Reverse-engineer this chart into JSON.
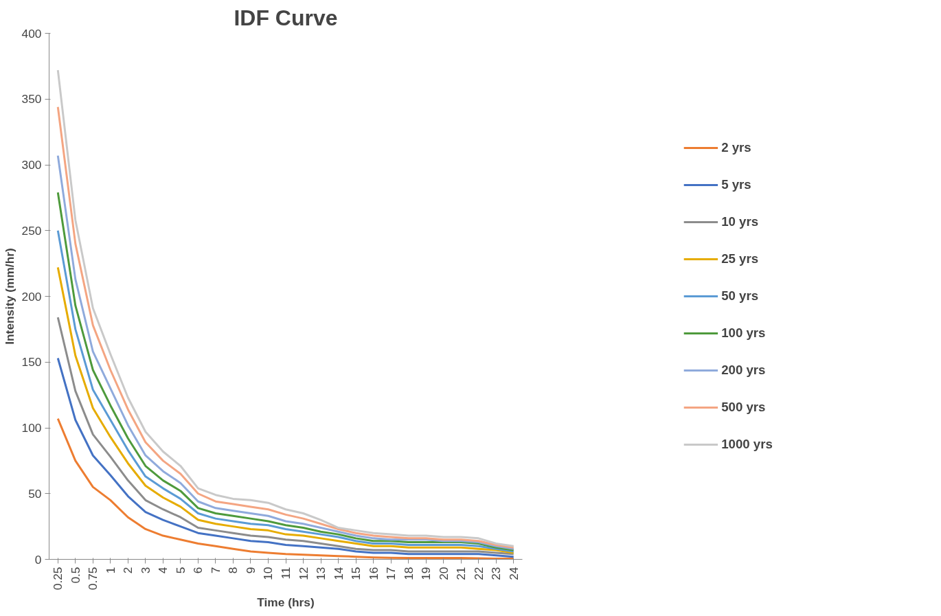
{
  "chart_data": {
    "type": "line",
    "title": "IDF Curve",
    "xlabel": "Time (hrs)",
    "ylabel": "Intensity (mm/hr)",
    "categories": [
      "0.25",
      "0.5",
      "0.75",
      "1",
      "2",
      "3",
      "4",
      "5",
      "6",
      "7",
      "8",
      "9",
      "10",
      "11",
      "12",
      "13",
      "14",
      "15",
      "16",
      "17",
      "18",
      "19",
      "20",
      "21",
      "22",
      "23",
      "24"
    ],
    "ylim": [
      0,
      400
    ],
    "yticks": [
      0,
      50,
      100,
      150,
      200,
      250,
      300,
      350,
      400
    ],
    "grid": false,
    "legend": "right",
    "marker": "none",
    "line_style": "solid",
    "series": [
      {
        "name": "2 yrs",
        "color": "#ed7d31",
        "values": [
          107,
          75,
          55,
          45,
          32,
          23,
          18,
          15,
          12,
          10,
          8,
          6,
          5,
          4,
          3.5,
          3,
          2.5,
          2,
          1.5,
          1.2,
          1,
          1,
          1,
          1,
          0.8,
          0.5,
          0.5
        ]
      },
      {
        "name": "5 yrs",
        "color": "#4472c4",
        "values": [
          153,
          106,
          79,
          64,
          48,
          36,
          30,
          25,
          20,
          18,
          16,
          14,
          13,
          11,
          10,
          9,
          8,
          6,
          5,
          5,
          4,
          4,
          4,
          4,
          4,
          3,
          2
        ]
      },
      {
        "name": "10 yrs",
        "color": "#8c8c8c",
        "values": [
          184,
          128,
          95,
          78,
          60,
          45,
          38,
          32,
          24,
          22,
          20,
          18,
          17,
          15,
          14,
          12,
          10,
          8,
          7,
          7,
          6,
          6,
          6,
          6,
          6,
          5,
          4
        ]
      },
      {
        "name": "25 yrs",
        "color": "#e6ac00",
        "values": [
          222,
          155,
          115,
          93,
          73,
          56,
          47,
          40,
          30,
          27,
          25,
          23,
          22,
          19,
          18,
          16,
          14,
          12,
          10,
          10,
          9,
          9,
          9,
          9,
          8,
          7,
          5
        ]
      },
      {
        "name": "50 yrs",
        "color": "#5b9bd5",
        "values": [
          250,
          175,
          129,
          106,
          83,
          63,
          54,
          46,
          35,
          31,
          29,
          27,
          26,
          23,
          21,
          19,
          17,
          14,
          12,
          12,
          11,
          11,
          11,
          11,
          10,
          8,
          6
        ]
      },
      {
        "name": "100 yrs",
        "color": "#4e9a3c",
        "values": [
          279,
          193,
          144,
          117,
          92,
          71,
          60,
          52,
          39,
          35,
          33,
          31,
          29,
          26,
          24,
          21,
          19,
          16,
          14,
          14,
          13,
          13,
          13,
          13,
          12,
          9,
          7
        ]
      },
      {
        "name": "200 yrs",
        "color": "#8faadc",
        "values": [
          307,
          213,
          158,
          130,
          102,
          79,
          67,
          58,
          44,
          39,
          37,
          35,
          33,
          29,
          27,
          24,
          21,
          18,
          16,
          15,
          15,
          15,
          14,
          14,
          13,
          10,
          8
        ]
      },
      {
        "name": "500 yrs",
        "color": "#f4a582",
        "values": [
          344,
          240,
          178,
          144,
          114,
          89,
          75,
          65,
          50,
          44,
          42,
          40,
          38,
          34,
          31,
          27,
          23,
          20,
          18,
          17,
          16,
          16,
          15,
          15,
          14,
          11,
          9
        ]
      },
      {
        "name": "1000 yrs",
        "color": "#c9c9c9",
        "values": [
          372,
          258,
          191,
          156,
          123,
          97,
          82,
          71,
          54,
          49,
          46,
          45,
          43,
          38,
          35,
          30,
          24,
          22,
          20,
          19,
          18,
          18,
          17,
          17,
          16,
          12,
          10
        ]
      }
    ]
  }
}
